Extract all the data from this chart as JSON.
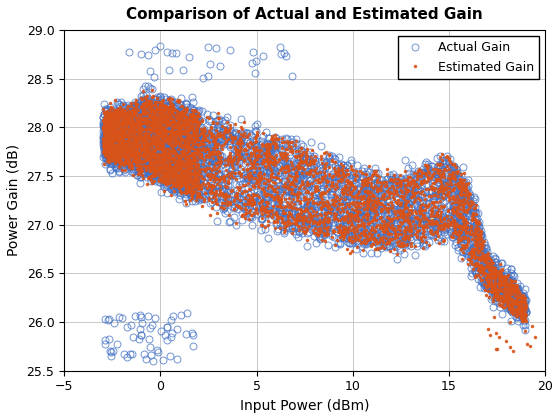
{
  "title": "Comparison of Actual and Estimated Gain",
  "xlabel": "Input Power (dBm)",
  "ylabel": "Power Gain (dB)",
  "xlim": [
    -5,
    20
  ],
  "ylim": [
    25.5,
    29
  ],
  "xticks": [
    -5,
    0,
    5,
    10,
    15,
    20
  ],
  "yticks": [
    25.5,
    26,
    26.5,
    27,
    27.5,
    28,
    28.5,
    29
  ],
  "actual_color": "#4472C4",
  "estimated_color": "#D95319",
  "actual_label": "Actual Gain",
  "estimated_label": "Estimated Gain",
  "actual_marker": "o",
  "estimated_marker": ".",
  "actual_markersize": 5,
  "estimated_markersize": 3,
  "seed": 42,
  "n_points": 5000,
  "figsize": [
    5.6,
    4.2
  ],
  "dpi": 100
}
